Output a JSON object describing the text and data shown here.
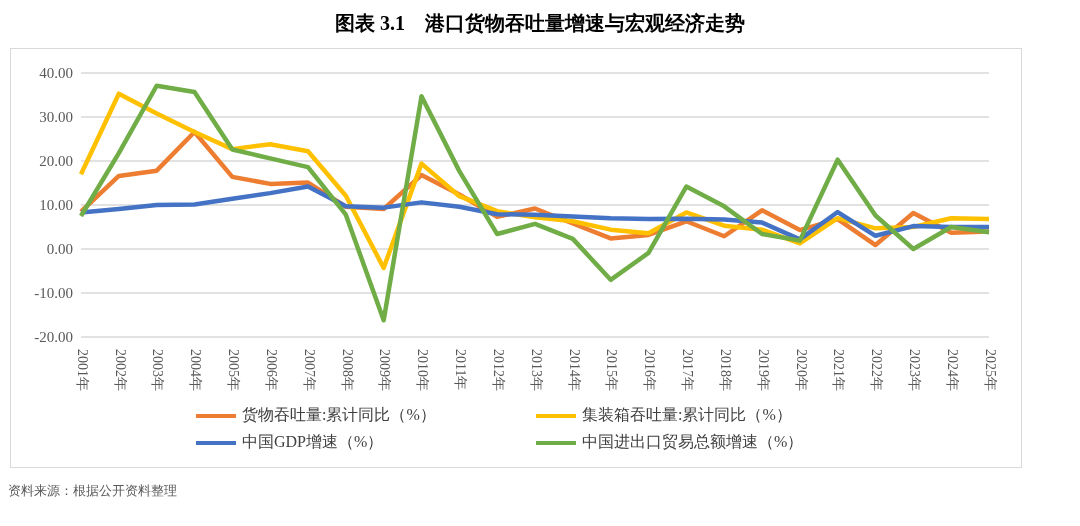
{
  "chart_data": {
    "type": "line",
    "title": "图表 3.1　港口货物吞吐量增速与宏观经济走势",
    "categories": [
      "2001年",
      "2002年",
      "2003年",
      "2004年",
      "2005年",
      "2006年",
      "2007年",
      "2008年",
      "2009年",
      "2010年",
      "2011年",
      "2012年",
      "2013年",
      "2014年",
      "2015年",
      "2016年",
      "2017年",
      "2018年",
      "2019年",
      "2020年",
      "2021年",
      "2022年",
      "2023年",
      "2024年",
      "2025年"
    ],
    "series": [
      {
        "name": "货物吞吐量:累计同比（%）",
        "color": "#ed7d31",
        "values": [
          8.5,
          16.6,
          17.8,
          26.6,
          16.4,
          14.8,
          15.1,
          9.6,
          9.1,
          16.8,
          12.4,
          7.3,
          9.2,
          5.8,
          2.4,
          3.2,
          6.3,
          2.9,
          8.8,
          4.3,
          6.8,
          0.9,
          8.2,
          3.7,
          4.0
        ]
      },
      {
        "name": "集装箱吞吐量:累计同比（%）",
        "color": "#ffc000",
        "values": [
          17.0,
          35.3,
          30.8,
          26.6,
          22.7,
          23.8,
          22.2,
          12.1,
          -4.3,
          19.4,
          12.0,
          8.6,
          7.2,
          6.3,
          4.4,
          3.6,
          8.3,
          5.3,
          4.4,
          1.3,
          7.0,
          4.7,
          5.0,
          7.0,
          6.8
        ]
      },
      {
        "name": "中国GDP增速（%）",
        "color": "#4472c4",
        "values": [
          8.3,
          9.1,
          10.0,
          10.1,
          11.4,
          12.7,
          14.2,
          9.7,
          9.4,
          10.6,
          9.6,
          7.9,
          7.8,
          7.4,
          7.0,
          6.8,
          6.9,
          6.7,
          6.0,
          2.2,
          8.4,
          3.0,
          5.2,
          5.0,
          5.0
        ]
      },
      {
        "name": "中国进出口贸易总额增速（%）",
        "color": "#70ad47",
        "values": [
          7.5,
          21.8,
          37.1,
          35.7,
          22.6,
          20.6,
          18.6,
          7.8,
          -16.2,
          34.7,
          17.7,
          3.4,
          5.7,
          2.3,
          -7.0,
          -0.9,
          14.2,
          9.7,
          3.4,
          1.9,
          20.3,
          7.6,
          0.0,
          5.0,
          3.8
        ]
      }
    ],
    "ylim": [
      -20,
      40
    ],
    "yticks": [
      {
        "value": -20,
        "label": "-20.00"
      },
      {
        "value": -10,
        "label": "-10.00"
      },
      {
        "value": 0,
        "label": "0.00"
      },
      {
        "value": 10,
        "label": "10.00"
      },
      {
        "value": 20,
        "label": "20.00"
      },
      {
        "value": 30,
        "label": "30.00"
      },
      {
        "value": 40,
        "label": "40.00"
      }
    ],
    "grid": "y",
    "legend": "bottom",
    "marker": "none",
    "line_style": "solid",
    "annotations": [
      "资料来源：根据公开资料整理"
    ]
  }
}
